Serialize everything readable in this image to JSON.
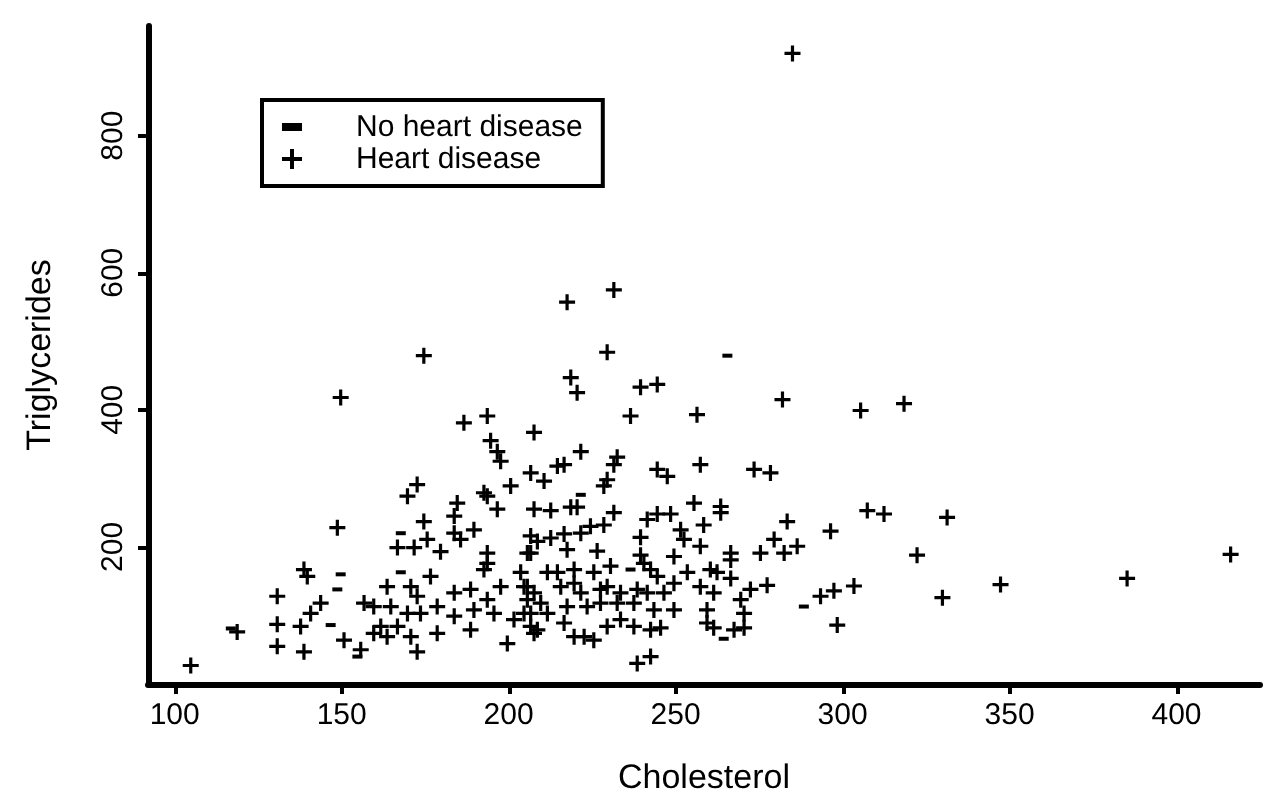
{
  "chart_data": {
    "type": "scatter",
    "xlabel": "Cholesterol",
    "ylabel": "Triglycerides",
    "xlim": [
      92,
      425
    ],
    "ylim": [
      0,
      960
    ],
    "xticks": [
      100,
      150,
      200,
      250,
      300,
      350,
      400
    ],
    "yticks": [
      200,
      400,
      600,
      800
    ],
    "grid": false,
    "legend": "top left",
    "series": [
      {
        "name": "No heart disease",
        "color": "#000000",
        "marker": "square",
        "x": [
          265.5,
          167.7,
          149.7,
          148.7,
          146.7,
          116.8,
          154.7,
          167.7,
          221.6,
          236.5,
          288.4,
          264.4
        ],
        "values": [
          479,
          220,
          160,
          138,
          86,
          81,
          40,
          163,
          276,
          167,
          113,
          66
        ]
      },
      {
        "name": "Heart disease",
        "color": "#000000",
        "marker": "cross",
        "x": [
          285,
          282,
          305.4,
          318.4,
          278.4,
          283.4,
          279.5,
          282.5,
          286.4,
          275.4,
          277.4,
          293.4,
          297.4,
          303.4,
          298.4,
          296.4,
          307.4,
          312.4,
          331.3,
          322.3,
          329.9,
          347.3,
          385.2,
          416.2,
          217.5,
          231.5,
          174.6,
          229.5,
          218.6,
          220.5,
          239.5,
          244.5,
          149.7,
          186.6,
          193.6,
          194.6,
          196.6,
          197.6,
          207.6,
          172.6,
          169.7,
          148.7,
          174.6,
          184.6,
          192.6,
          200.6,
          183.7,
          183.7,
          189.6,
          193.6,
          196.6,
          206.6,
          207.6,
          166.7,
          171.7,
          175.6,
          179.6,
          185.6,
          193.6,
          193.6,
          205.6,
          138.7,
          139.7,
          130.7,
          143.7,
          140.7,
          137.7,
          130.7,
          130.7,
          138.7,
          150.7,
          118.7,
          104.8,
          155.7,
          159.6,
          161.7,
          156.7,
          159.6,
          163.6,
          164.7,
          170.7,
          172.6,
          169.7,
          166.7,
          163.6,
          170.7,
          172.6,
          173.6,
          176.6,
          178.6,
          178.6,
          183.7,
          183.7,
          188.6,
          189.6,
          188.6,
          192.6,
          193.6,
          195.6,
          197.6,
          199.6,
          201.6,
          203.6,
          205.6,
          206.6,
          207.6,
          204.6,
          236.5,
          256.4,
          221.6,
          232.5,
          231.5,
          214.6,
          216.6,
          210.6,
          229.5,
          228.5,
          244.5,
          247.5,
          257.4,
          273.5,
          212.6,
          218.6,
          220.5,
          224.5,
          228.5,
          231.5,
          241.5,
          244.5,
          248.5,
          255.5,
          258.4,
          263.5,
          263.5,
          251.5,
          252.5,
          257.4,
          239.5,
          239.5,
          249.5,
          206.6,
          208.6,
          212.6,
          216.6,
          221.6,
          206.6,
          217.5,
          226.5,
          266.5,
          266.5,
          211.6,
          214.6,
          219.6,
          225.5,
          230.5,
          240.5,
          242.5,
          244.5,
          253.5,
          260.4,
          262.4,
          266.5,
          272.4,
          205.6,
          207.6,
          215.6,
          219.6,
          221.6,
          227.5,
          229.5,
          233.5,
          238.5,
          241.5,
          246.5,
          249.5,
          257.4,
          261.4,
          269.5,
          204.6,
          209.6,
          211.6,
          217.5,
          223.5,
          227.5,
          232.5,
          237.5,
          243.5,
          249.5,
          259.4,
          270.5,
          206.6,
          208.6,
          216.6,
          219.6,
          222.6,
          225.5,
          229.5,
          233.5,
          237.5,
          242.5,
          245.5,
          259.4,
          261.4,
          267.5,
          270.5,
          238.5,
          242.5
        ],
        "values": [
          920,
          415,
          399,
          409,
          308,
          237,
          211,
          191,
          201,
          191,
          144,
          128,
          136,
          143,
          86,
          223,
          253,
          248,
          243,
          188,
          126,
          145,
          154,
          189,
          557,
          575,
          479,
          484,
          447,
          425,
          433,
          437,
          418,
          381,
          391,
          355,
          339,
          325,
          367,
          291,
          274,
          228,
          237,
          264,
          279,
          289,
          245,
          220,
          225,
          274,
          255,
          308,
          255,
          199,
          199,
          211,
          193,
          211,
          191,
          176,
          191,
          167,
          157,
          128,
          118,
          103,
          84,
          87,
          55,
          47,
          64,
          76,
          27,
          50,
          74,
          84,
          118,
          113,
          142,
          113,
          142,
          128,
          103,
          84,
          69,
          69,
          47,
          103,
          157,
          113,
          74,
          133,
          99,
          138,
          108,
          79,
          167,
          123,
          103,
          142,
          59,
          94,
          163,
          123,
          103,
          74,
          142,
          391,
          393,
          339,
          331,
          320,
          318,
          320,
          296,
          298,
          289,
          313,
          303,
          320,
          313,
          253,
          258,
          258,
          230,
          232,
          250,
          240,
          248,
          248,
          264,
          232,
          259,
          250,
          225,
          211,
          201,
          214,
          188,
          186,
          216,
          208,
          213,
          219,
          220,
          191,
          196,
          194,
          191,
          181,
          163,
          163,
          167,
          163,
          172,
          176,
          167,
          157,
          163,
          167,
          163,
          154,
          138,
          142,
          133,
          142,
          147,
          133,
          138,
          142,
          133,
          138,
          133,
          133,
          147,
          142,
          133,
          123,
          103,
          118,
          103,
          113,
          113,
          118,
          118,
          118,
          108,
          108,
          108,
          103,
          84,
          79,
          89,
          69,
          69,
          64,
          84,
          94,
          84,
          79,
          82,
          89,
          82,
          79,
          82,
          30,
          40
        ]
      }
    ]
  }
}
